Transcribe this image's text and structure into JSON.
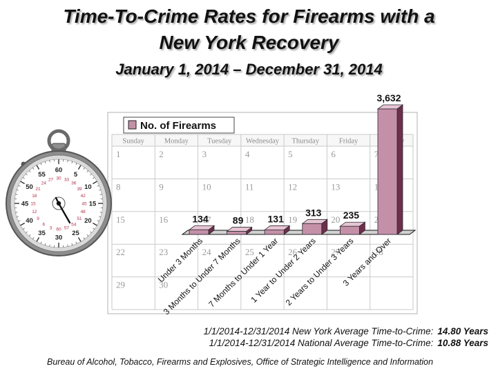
{
  "title_line1": "Time-To-Crime Rates for Firearms with a",
  "title_line2": "New York Recovery",
  "subtitle": "January 1, 2014 – December 31, 2014",
  "calendar": {
    "days": [
      "Sunday",
      "Monday",
      "Tuesday",
      "Wednesday",
      "Thursday",
      "Friday",
      "Saturday"
    ],
    "dates": [
      [
        "1",
        "2",
        "3",
        "4",
        "5",
        "6",
        "7"
      ],
      [
        "8",
        "9",
        "10",
        "11",
        "12",
        "13",
        "14"
      ],
      [
        "15",
        "16",
        "17",
        "18",
        "19",
        "20",
        "21"
      ],
      [
        "22",
        "23",
        "24",
        "25",
        "26",
        "27",
        "28"
      ],
      [
        "29",
        "30",
        "",
        "",
        "",
        "",
        ""
      ]
    ]
  },
  "stopwatch": {
    "outer_numbers": [
      "5",
      "10",
      "15",
      "20",
      "25",
      "30",
      "35",
      "40",
      "45",
      "50",
      "55",
      "60"
    ],
    "inner_numbers": [
      "30",
      "33",
      "36",
      "39",
      "42",
      "45",
      "48",
      "51",
      "54",
      "57",
      "60",
      "3",
      "6",
      "9",
      "12",
      "15",
      "18",
      "21",
      "24",
      "27"
    ]
  },
  "chart_data": {
    "type": "bar",
    "categories": [
      "Under 3 Months",
      "3 Months to Under 7 Months",
      "7 Months to Under 1 Year",
      "1 Year to Under 2 Years",
      "2 Years to Under 3 Years",
      "3 Years and Over"
    ],
    "series": [
      {
        "name": "No. of Firearms",
        "values": [
          134,
          89,
          131,
          313,
          235,
          3632
        ]
      }
    ],
    "data_labels": [
      "134",
      "89",
      "131",
      "313",
      "235",
      "3,632"
    ],
    "legend_position": "top-left",
    "colors": {
      "bar_face": "#C490A8",
      "bar_top": "#E7C4D4",
      "bar_side": "#6E2E4E",
      "outline": "#2a2a2a"
    },
    "ylim": [
      0,
      3632
    ]
  },
  "footnote_ny_label": "1/1/2014-12/31/2014 New York Average Time-to-Crime:",
  "footnote_ny_value": "14.80 Years",
  "footnote_nat_label": "1/1/2014-12/31/2014 National Average Time-to-Crime:",
  "footnote_nat_value": "10.88 Years",
  "source": "Bureau of Alcohol, Tobacco, Firearms and Explosives, Office of Strategic Intelligence and Information"
}
